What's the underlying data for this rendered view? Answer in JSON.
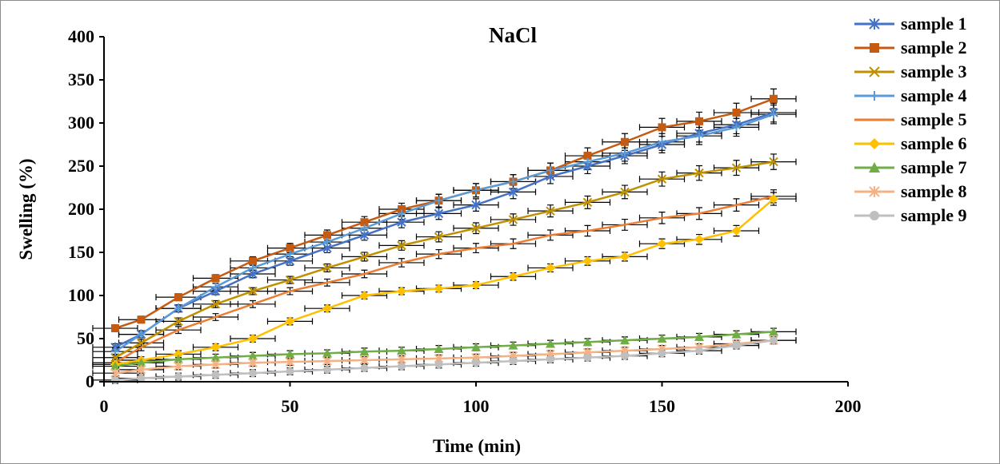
{
  "chart_data": {
    "type": "line",
    "title": "NaCl",
    "xlabel": "Time (min)",
    "ylabel": "Swelling (%)",
    "xlim": [
      0,
      200
    ],
    "ylim": [
      0,
      400
    ],
    "xticks": [
      0,
      50,
      100,
      150,
      200
    ],
    "yticks": [
      0,
      50,
      100,
      150,
      200,
      250,
      300,
      350,
      400
    ],
    "grid": false,
    "legend_position": "right",
    "error_bars": true,
    "x": [
      3,
      10,
      20,
      30,
      40,
      50,
      60,
      70,
      80,
      90,
      100,
      110,
      120,
      130,
      140,
      150,
      160,
      170,
      180
    ],
    "series": [
      {
        "name": "sample 1",
        "color": "#4472C4",
        "marker": "asterisk",
        "values": [
          40,
          55,
          85,
          105,
          125,
          140,
          155,
          170,
          185,
          195,
          205,
          220,
          238,
          250,
          262,
          275,
          288,
          298,
          312
        ]
      },
      {
        "name": "sample 2",
        "color": "#C55A11",
        "marker": "square",
        "values": [
          62,
          72,
          98,
          120,
          140,
          155,
          170,
          185,
          200,
          210,
          222,
          232,
          245,
          262,
          278,
          295,
          302,
          312,
          328
        ]
      },
      {
        "name": "sample 3",
        "color": "#BF9000",
        "marker": "x",
        "values": [
          28,
          45,
          70,
          90,
          105,
          118,
          132,
          145,
          158,
          168,
          178,
          188,
          198,
          208,
          220,
          235,
          242,
          248,
          255
        ]
      },
      {
        "name": "sample 4",
        "color": "#5B9BD5",
        "marker": "plus",
        "values": [
          35,
          55,
          85,
          110,
          132,
          148,
          162,
          178,
          195,
          210,
          222,
          232,
          245,
          255,
          265,
          278,
          285,
          295,
          310
        ]
      },
      {
        "name": "sample 5",
        "color": "#ED7D31",
        "marker": "none",
        "values": [
          22,
          40,
          60,
          75,
          90,
          105,
          115,
          125,
          138,
          148,
          155,
          160,
          170,
          175,
          182,
          190,
          195,
          205,
          215
        ]
      },
      {
        "name": "sample 6",
        "color": "#FFC000",
        "marker": "diamond",
        "values": [
          20,
          25,
          32,
          40,
          50,
          70,
          85,
          100,
          105,
          108,
          112,
          122,
          132,
          140,
          145,
          160,
          165,
          175,
          212
        ]
      },
      {
        "name": "sample 7",
        "color": "#70AD47",
        "marker": "triangle",
        "values": [
          18,
          22,
          26,
          28,
          30,
          32,
          33,
          35,
          36,
          38,
          40,
          42,
          44,
          46,
          48,
          50,
          52,
          55,
          58
        ]
      },
      {
        "name": "sample 8",
        "color": "#F4B183",
        "marker": "asterisk",
        "values": [
          10,
          14,
          18,
          20,
          22,
          23,
          24,
          25,
          26,
          27,
          28,
          30,
          32,
          34,
          36,
          38,
          40,
          44,
          48
        ]
      },
      {
        "name": "sample 9",
        "color": "#BFBFBF",
        "marker": "circle",
        "values": [
          2,
          4,
          6,
          8,
          10,
          12,
          14,
          16,
          18,
          20,
          22,
          24,
          26,
          28,
          30,
          33,
          36,
          42,
          48
        ]
      }
    ]
  }
}
